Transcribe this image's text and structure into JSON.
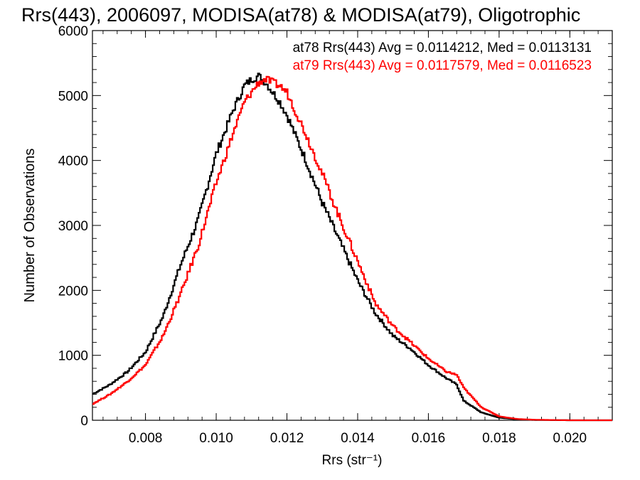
{
  "chart_data": {
    "type": "line",
    "title": "Rrs(443), 2006097, MODISA(at78) & MODISA(at79), Oligotrophic",
    "xlabel": "Rrs (str⁻¹)",
    "ylabel": "Number of Observations",
    "xlim": [
      0.0065,
      0.0212
    ],
    "ylim": [
      0,
      6000
    ],
    "x_ticks": [
      "0.008",
      "0.010",
      "0.012",
      "0.014",
      "0.016",
      "0.018",
      "0.020"
    ],
    "x_tick_values": [
      0.008,
      0.01,
      0.012,
      0.014,
      0.016,
      0.018,
      0.02
    ],
    "y_ticks": [
      "0",
      "1000",
      "2000",
      "3000",
      "4000",
      "5000",
      "6000"
    ],
    "y_tick_values": [
      0,
      1000,
      2000,
      3000,
      4000,
      5000,
      6000
    ],
    "grid": false,
    "annotations": [
      "at78 Rrs(443) Avg = 0.0114212, Med = 0.0113131",
      "at79 Rrs(443) Avg = 0.0117579, Med = 0.0116523"
    ],
    "series": [
      {
        "color": "#000000",
        "x": [
          0.0065,
          0.007,
          0.0075,
          0.008,
          0.0085,
          0.009,
          0.0095,
          0.01,
          0.0105,
          0.0108,
          0.011,
          0.0112,
          0.0114,
          0.0116,
          0.0118,
          0.012,
          0.0125,
          0.013,
          0.0135,
          0.014,
          0.0145,
          0.015,
          0.0155,
          0.016,
          0.0165,
          0.0168,
          0.017,
          0.0175,
          0.018,
          0.0185,
          0.019,
          0.02,
          0.021,
          0.0212
        ],
        "values": [
          400,
          550,
          750,
          1050,
          1600,
          2400,
          3100,
          4100,
          4800,
          5150,
          5250,
          5300,
          5200,
          5050,
          4900,
          4700,
          4050,
          3350,
          2750,
          2150,
          1650,
          1300,
          1100,
          850,
          650,
          550,
          300,
          120,
          40,
          15,
          5,
          0,
          0,
          0
        ]
      },
      {
        "color": "#ff0000",
        "x": [
          0.0065,
          0.007,
          0.0075,
          0.008,
          0.0085,
          0.009,
          0.0095,
          0.01,
          0.0105,
          0.0108,
          0.011,
          0.0112,
          0.0114,
          0.0116,
          0.0118,
          0.012,
          0.0125,
          0.013,
          0.0135,
          0.014,
          0.0145,
          0.015,
          0.0155,
          0.016,
          0.0165,
          0.0168,
          0.017,
          0.0175,
          0.018,
          0.0185,
          0.019,
          0.02,
          0.021,
          0.0212
        ],
        "values": [
          250,
          400,
          600,
          850,
          1300,
          1950,
          2700,
          3650,
          4450,
          4900,
          5050,
          5200,
          5250,
          5200,
          5150,
          5050,
          4450,
          3800,
          3100,
          2450,
          1800,
          1450,
          1200,
          950,
          750,
          700,
          500,
          200,
          60,
          20,
          8,
          0,
          0,
          0
        ]
      }
    ]
  }
}
